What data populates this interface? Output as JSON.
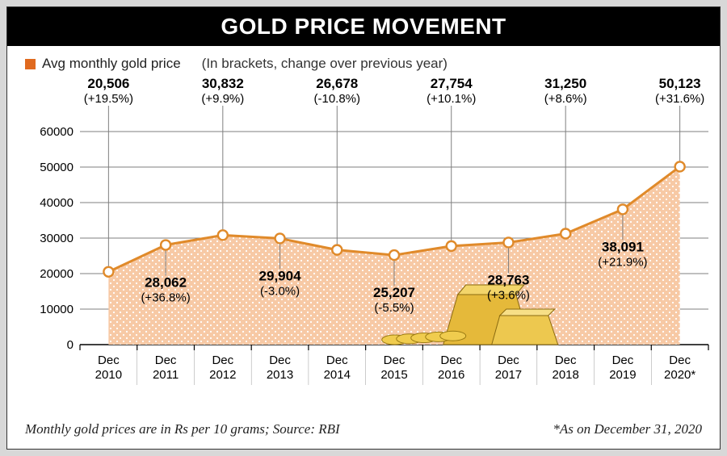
{
  "title": "GOLD PRICE MOVEMENT",
  "legend": {
    "series_label": "Avg monthly gold price",
    "series_color": "#e06a1f",
    "note": "(In brackets, change over previous year)"
  },
  "chart": {
    "type": "area",
    "x_labels_top": [
      "Dec",
      "Dec",
      "Dec",
      "Dec",
      "Dec",
      "Dec",
      "Dec",
      "Dec",
      "Dec",
      "Dec",
      "Dec"
    ],
    "x_labels_bottom": [
      "2010",
      "2011",
      "2012",
      "2013",
      "2014",
      "2015",
      "2016",
      "2017",
      "2018",
      "2019",
      "2020*"
    ],
    "values": [
      20506,
      28062,
      30832,
      29904,
      26678,
      25207,
      27754,
      28763,
      31250,
      38091,
      50123
    ],
    "value_labels": [
      "20,506",
      "28,062",
      "30,832",
      "29,904",
      "26,678",
      "25,207",
      "27,754",
      "28,763",
      "31,250",
      "38,091",
      "50,123"
    ],
    "change_labels": [
      "(+19.5%)",
      "(+36.8%)",
      "(+9.9%)",
      "(-3.0%)",
      "(-10.8%)",
      "(-5.5%)",
      "(+10.1%)",
      "(+3.6%)",
      "(+8.6%)",
      "(+21.9%)",
      "(+31.6%)"
    ],
    "ylim": [
      0,
      60000
    ],
    "ytick_step": 10000,
    "y_tick_labels": [
      "0",
      "10000",
      "20000",
      "30000",
      "40000",
      "50000",
      "60000"
    ],
    "line_color": "#e08a2a",
    "line_width": 3,
    "marker_fill": "#ffffff",
    "marker_stroke": "#e08a2a",
    "marker_radius": 6,
    "area_fill": "#f7c9a5",
    "dot_color": "#ffffff",
    "grid_color": "#000000",
    "callout_line_color": "#7f7f7f",
    "callout_positions": [
      "up",
      "down",
      "up",
      "down",
      "up",
      "down",
      "up",
      "down",
      "up",
      "down",
      "up"
    ],
    "background_color": "#ffffff"
  },
  "footer": {
    "left": "Monthly gold prices are in Rs per 10 grams; Source: RBI",
    "right": "*As on December 31, 2020"
  }
}
